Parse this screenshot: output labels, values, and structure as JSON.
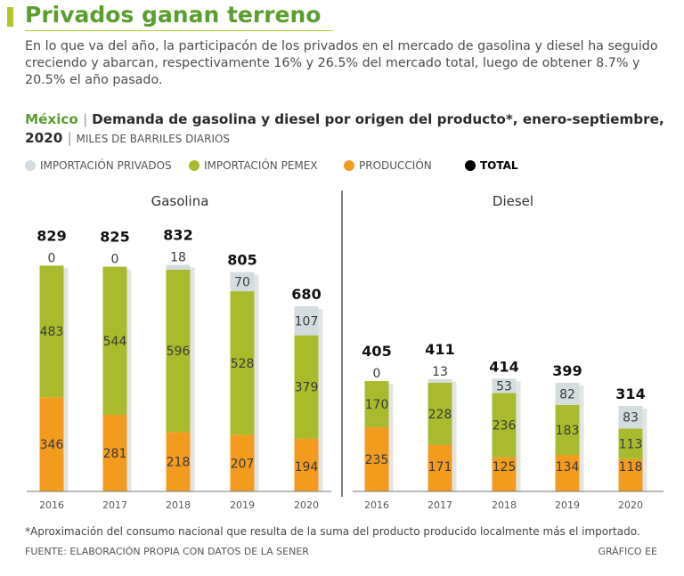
{
  "header": {
    "title": "Privados ganan terreno",
    "subtitle": "En lo que va del año, la participacón de los privados en el mercado de gasolina y diesel ha seguido creciendo y abarcan, respectivamente 16% y 26.5% del mercado total, luego de obtener 8.7% y 20.5% el año pasado.",
    "country": "México",
    "chart_title": "Demanda de gasolina y diesel por origen del producto*, enero-septiembre, 2020",
    "unit": "MILES DE BARRILES DIARIOS"
  },
  "legend": [
    {
      "label": "IMPORTACIÓN PRIVADOS",
      "color": "#d3dde0"
    },
    {
      "label": "IMPORTACIÓN PEMEX",
      "color": "#a9bb2c"
    },
    {
      "label": "PRODUCCIÓN",
      "color": "#f39b1f"
    },
    {
      "label": "TOTAL",
      "color": "#000000"
    }
  ],
  "colors": {
    "privados": "#d3dde0",
    "pemex": "#a9bb2c",
    "produccion": "#f39b1f",
    "shadow": "#e4e4e4"
  },
  "chart_data": [
    {
      "type": "bar",
      "stacked": true,
      "title": "Gasolina",
      "categories": [
        "2016",
        "2017",
        "2018",
        "2019",
        "2020"
      ],
      "series": [
        {
          "name": "PRODUCCIÓN",
          "values": [
            346,
            281,
            218,
            207,
            194
          ]
        },
        {
          "name": "IMPORTACIÓN PEMEX",
          "values": [
            483,
            544,
            596,
            528,
            379
          ]
        },
        {
          "name": "IMPORTACIÓN PRIVADOS",
          "values": [
            0,
            0,
            18,
            70,
            107
          ]
        }
      ],
      "totals": [
        829,
        825,
        832,
        805,
        680
      ]
    },
    {
      "type": "bar",
      "stacked": true,
      "title": "Diesel",
      "categories": [
        "2016",
        "2017",
        "2018",
        "2019",
        "2020"
      ],
      "series": [
        {
          "name": "PRODUCCIÓN",
          "values": [
            235,
            171,
            125,
            134,
            118
          ]
        },
        {
          "name": "IMPORTACIÓN PEMEX",
          "values": [
            170,
            228,
            236,
            183,
            113
          ]
        },
        {
          "name": "IMPORTACIÓN PRIVADOS",
          "values": [
            0,
            13,
            53,
            82,
            83
          ]
        }
      ],
      "totals": [
        405,
        411,
        414,
        399,
        314
      ]
    }
  ],
  "footer": {
    "note": "*Aproximación del consumo nacional que resulta de la suma del producto producido localmente más el importado.",
    "source": "FUENTE: ELABORACIÓN PROPIA CON DATOS DE LA SENER",
    "credit": "GRÁFICO EE"
  }
}
